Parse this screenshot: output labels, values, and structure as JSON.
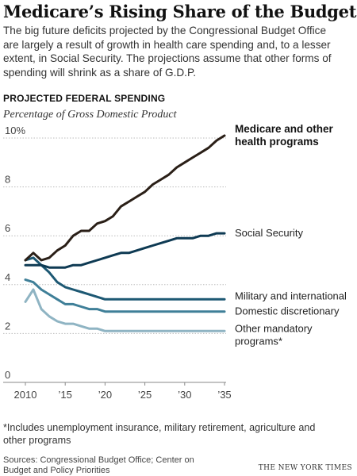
{
  "headline": "Medicare’s Rising Share of the Budget",
  "dek": "The big future deficits projected by the Congressional Budget Office are largely a result of growth in health care spending and, to a lesser extent, in Social Security. The projections assume that other forms of spending will shrink as a share of G.D.P.",
  "section_label": "PROJECTED FEDERAL SPENDING",
  "footnote": "*Includes unemployment insurance, military retirement, agriculture and other programs",
  "source": "Sources: Congressional Budget Office; Center on Budget and Policy Priorities",
  "credit": "THE NEW YORK TIMES",
  "chart_data": {
    "type": "line",
    "ylabel": "Percentage of Gross Domestic Product",
    "xlim": [
      2010,
      2035
    ],
    "ylim": [
      0,
      10
    ],
    "yticks": [
      {
        "value": 0,
        "label": "0"
      },
      {
        "value": 2,
        "label": "2"
      },
      {
        "value": 4,
        "label": "4"
      },
      {
        "value": 6,
        "label": "6"
      },
      {
        "value": 8,
        "label": "8"
      },
      {
        "value": 10,
        "label": "10%"
      }
    ],
    "xticks": [
      {
        "value": 2010,
        "label": "2010"
      },
      {
        "value": 2015,
        "label": "’15"
      },
      {
        "value": 2020,
        "label": "’20"
      },
      {
        "value": 2025,
        "label": "’25"
      },
      {
        "value": 2030,
        "label": "’30"
      },
      {
        "value": 2035,
        "label": "’35"
      }
    ],
    "grid": "horizontal",
    "series": [
      {
        "name": "Medicare and other health programs",
        "color": "#2a1f17",
        "width": 3,
        "label_lines": [
          "Medicare and other",
          "health programs"
        ],
        "label_bold": true,
        "points": [
          [
            2010,
            5.0
          ],
          [
            2011,
            5.3
          ],
          [
            2012,
            5.0
          ],
          [
            2013,
            5.1
          ],
          [
            2014,
            5.4
          ],
          [
            2015,
            5.6
          ],
          [
            2016,
            6.0
          ],
          [
            2017,
            6.2
          ],
          [
            2018,
            6.2
          ],
          [
            2019,
            6.5
          ],
          [
            2020,
            6.6
          ],
          [
            2021,
            6.8
          ],
          [
            2022,
            7.2
          ],
          [
            2023,
            7.4
          ],
          [
            2024,
            7.6
          ],
          [
            2025,
            7.8
          ],
          [
            2026,
            8.1
          ],
          [
            2027,
            8.3
          ],
          [
            2028,
            8.5
          ],
          [
            2029,
            8.8
          ],
          [
            2030,
            9.0
          ],
          [
            2031,
            9.2
          ],
          [
            2032,
            9.4
          ],
          [
            2033,
            9.6
          ],
          [
            2034,
            9.9
          ],
          [
            2035,
            10.1
          ]
        ]
      },
      {
        "name": "Social Security",
        "color": "#0e3a53",
        "width": 3,
        "label_lines": [
          "Social Security"
        ],
        "label_bold": false,
        "points": [
          [
            2010,
            4.8
          ],
          [
            2011,
            4.8
          ],
          [
            2012,
            4.8
          ],
          [
            2013,
            4.7
          ],
          [
            2014,
            4.7
          ],
          [
            2015,
            4.7
          ],
          [
            2016,
            4.8
          ],
          [
            2017,
            4.8
          ],
          [
            2018,
            4.9
          ],
          [
            2019,
            5.0
          ],
          [
            2020,
            5.1
          ],
          [
            2021,
            5.2
          ],
          [
            2022,
            5.3
          ],
          [
            2023,
            5.3
          ],
          [
            2024,
            5.4
          ],
          [
            2025,
            5.5
          ],
          [
            2026,
            5.6
          ],
          [
            2027,
            5.7
          ],
          [
            2028,
            5.8
          ],
          [
            2029,
            5.9
          ],
          [
            2030,
            5.9
          ],
          [
            2031,
            5.9
          ],
          [
            2032,
            6.0
          ],
          [
            2033,
            6.0
          ],
          [
            2034,
            6.1
          ],
          [
            2035,
            6.1
          ]
        ]
      },
      {
        "name": "Military and international",
        "color": "#1d5873",
        "width": 3,
        "label_lines": [
          "Military and international"
        ],
        "label_bold": false,
        "points": [
          [
            2010,
            5.0
          ],
          [
            2011,
            5.1
          ],
          [
            2012,
            4.8
          ],
          [
            2013,
            4.5
          ],
          [
            2014,
            4.1
          ],
          [
            2015,
            3.9
          ],
          [
            2016,
            3.8
          ],
          [
            2017,
            3.7
          ],
          [
            2018,
            3.6
          ],
          [
            2019,
            3.5
          ],
          [
            2020,
            3.4
          ],
          [
            2021,
            3.4
          ],
          [
            2022,
            3.4
          ],
          [
            2023,
            3.4
          ],
          [
            2024,
            3.4
          ],
          [
            2025,
            3.4
          ],
          [
            2026,
            3.4
          ],
          [
            2027,
            3.4
          ],
          [
            2028,
            3.4
          ],
          [
            2029,
            3.4
          ],
          [
            2030,
            3.4
          ],
          [
            2031,
            3.4
          ],
          [
            2032,
            3.4
          ],
          [
            2033,
            3.4
          ],
          [
            2034,
            3.4
          ],
          [
            2035,
            3.4
          ]
        ]
      },
      {
        "name": "Domestic discretionary",
        "color": "#3f7f98",
        "width": 3,
        "label_lines": [
          "Domestic discretionary"
        ],
        "label_bold": false,
        "points": [
          [
            2010,
            4.2
          ],
          [
            2011,
            4.1
          ],
          [
            2012,
            3.8
          ],
          [
            2013,
            3.6
          ],
          [
            2014,
            3.4
          ],
          [
            2015,
            3.2
          ],
          [
            2016,
            3.2
          ],
          [
            2017,
            3.1
          ],
          [
            2018,
            3.0
          ],
          [
            2019,
            3.0
          ],
          [
            2020,
            2.9
          ],
          [
            2021,
            2.9
          ],
          [
            2022,
            2.9
          ],
          [
            2023,
            2.9
          ],
          [
            2024,
            2.9
          ],
          [
            2025,
            2.9
          ],
          [
            2026,
            2.9
          ],
          [
            2027,
            2.9
          ],
          [
            2028,
            2.9
          ],
          [
            2029,
            2.9
          ],
          [
            2030,
            2.9
          ],
          [
            2031,
            2.9
          ],
          [
            2032,
            2.9
          ],
          [
            2033,
            2.9
          ],
          [
            2034,
            2.9
          ],
          [
            2035,
            2.9
          ]
        ]
      },
      {
        "name": "Other mandatory programs*",
        "color": "#8fb4c3",
        "width": 3,
        "label_lines": [
          "Other mandatory",
          "programs*"
        ],
        "label_bold": false,
        "points": [
          [
            2010,
            3.3
          ],
          [
            2011,
            3.8
          ],
          [
            2012,
            3.0
          ],
          [
            2013,
            2.7
          ],
          [
            2014,
            2.5
          ],
          [
            2015,
            2.4
          ],
          [
            2016,
            2.4
          ],
          [
            2017,
            2.3
          ],
          [
            2018,
            2.2
          ],
          [
            2019,
            2.2
          ],
          [
            2020,
            2.1
          ],
          [
            2021,
            2.1
          ],
          [
            2022,
            2.1
          ],
          [
            2023,
            2.1
          ],
          [
            2024,
            2.1
          ],
          [
            2025,
            2.1
          ],
          [
            2026,
            2.1
          ],
          [
            2027,
            2.1
          ],
          [
            2028,
            2.1
          ],
          [
            2029,
            2.1
          ],
          [
            2030,
            2.1
          ],
          [
            2031,
            2.1
          ],
          [
            2032,
            2.1
          ],
          [
            2033,
            2.1
          ],
          [
            2034,
            2.1
          ],
          [
            2035,
            2.1
          ]
        ]
      }
    ]
  }
}
